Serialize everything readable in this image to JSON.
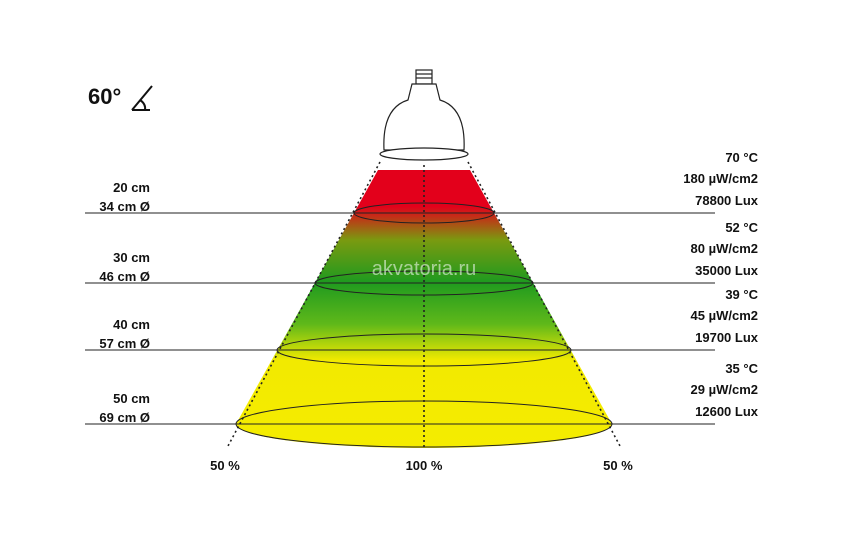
{
  "beam_angle": "60°",
  "watermark": "akvatoria.ru",
  "levels": [
    {
      "distance": "20 cm",
      "diameter": "34 cm Ø",
      "temperature": "70 °C",
      "uv": "180 µW/cm2",
      "lux": "78800 Lux"
    },
    {
      "distance": "30 cm",
      "diameter": "46 cm Ø",
      "temperature": "52 °C",
      "uv": "80 µW/cm2",
      "lux": "35000 Lux"
    },
    {
      "distance": "40 cm",
      "diameter": "57 cm Ø",
      "temperature": "39 °C",
      "uv": "45 µW/cm2",
      "lux": "19700 Lux"
    },
    {
      "distance": "50 cm",
      "diameter": "69 cm Ø",
      "temperature": "35 °C",
      "uv": "29 µW/cm2",
      "lux": "12600 Lux"
    }
  ],
  "bottom_labels": [
    "50 %",
    "100 %",
    "50 %"
  ]
}
